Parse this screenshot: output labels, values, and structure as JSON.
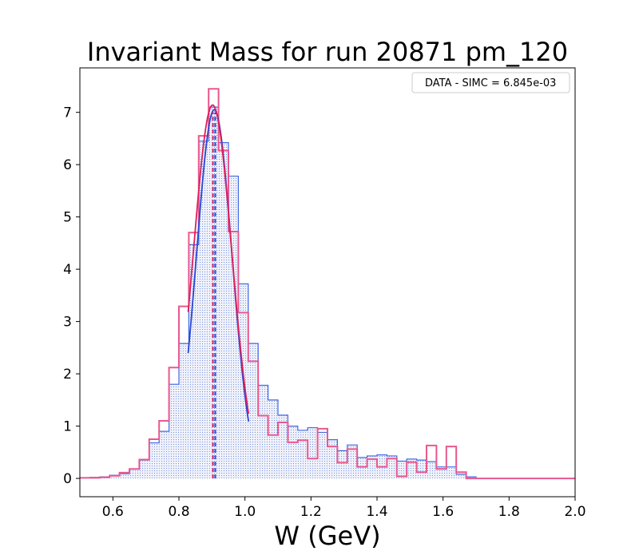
{
  "chart_data": {
    "type": "histogram",
    "title": "Invariant Mass for run 20871 pm_120",
    "xlabel": "W (GeV)",
    "ylabel": "",
    "xlim": [
      0.5,
      2.0
    ],
    "ylim": [
      -0.35,
      7.85
    ],
    "xticks": [
      "0.6",
      "0.8",
      "1.0",
      "1.2",
      "1.4",
      "1.6",
      "1.8",
      "2.0"
    ],
    "xtick_values": [
      0.6,
      0.8,
      1.0,
      1.2,
      1.4,
      1.6,
      1.8,
      2.0
    ],
    "yticks": [
      "0",
      "1",
      "2",
      "3",
      "4",
      "5",
      "6",
      "7"
    ],
    "ytick_values": [
      0,
      1,
      2,
      3,
      4,
      5,
      6,
      7
    ],
    "grid": false,
    "legend": {
      "text": "DATA - SIMC = 6.845e-03",
      "placement": "top-right"
    },
    "bin_edges": [
      0.5,
      0.53,
      0.56,
      0.59,
      0.62,
      0.65,
      0.68,
      0.71,
      0.74,
      0.77,
      0.8,
      0.83,
      0.86,
      0.89,
      0.92,
      0.95,
      0.98,
      1.01,
      1.04,
      1.07,
      1.1,
      1.13,
      1.16,
      1.19,
      1.22,
      1.25,
      1.28,
      1.31,
      1.34,
      1.37,
      1.4,
      1.43,
      1.46,
      1.49,
      1.52,
      1.55,
      1.58,
      1.61,
      1.64,
      1.67,
      1.7,
      2.0
    ],
    "series": [
      {
        "role": "simc",
        "style": "filled-step",
        "color": "#4169e1",
        "values": [
          0.01,
          0.02,
          0.03,
          0.06,
          0.09,
          0.18,
          0.35,
          0.68,
          0.9,
          1.8,
          2.58,
          4.47,
          6.45,
          7.1,
          6.42,
          5.78,
          3.72,
          2.58,
          1.78,
          1.5,
          1.21,
          1.0,
          0.92,
          0.97,
          0.88,
          0.74,
          0.53,
          0.64,
          0.4,
          0.43,
          0.45,
          0.43,
          0.33,
          0.37,
          0.35,
          0.32,
          0.22,
          0.22,
          0.08,
          0.03,
          0.0
        ]
      },
      {
        "role": "data",
        "style": "step",
        "color": "#e8588e",
        "values": [
          0.01,
          0.01,
          0.02,
          0.05,
          0.11,
          0.18,
          0.36,
          0.75,
          1.1,
          2.12,
          3.29,
          4.7,
          6.55,
          7.45,
          6.27,
          4.72,
          3.17,
          2.24,
          1.2,
          0.83,
          1.07,
          0.69,
          0.73,
          0.38,
          0.95,
          0.61,
          0.3,
          0.56,
          0.22,
          0.37,
          0.22,
          0.38,
          0.04,
          0.31,
          0.12,
          0.63,
          0.18,
          0.61,
          0.12,
          0.0,
          0.0
        ]
      }
    ],
    "fits": [
      {
        "role": "simc-fit",
        "color": "#2846d4",
        "amplitude": 7.05,
        "mean": 0.907,
        "sigma": 0.0538,
        "x_range": [
          0.828,
          1.011
        ]
      },
      {
        "role": "data-fit",
        "color": "#e01e5a",
        "amplitude": 7.14,
        "mean": 0.902,
        "sigma": 0.0582,
        "x_range": [
          0.828,
          1.011
        ]
      }
    ],
    "mean_lines": [
      {
        "role": "data-mean",
        "color": "#e01e5a",
        "x": 0.903
      },
      {
        "role": "simc-mean",
        "color": "#2846d4",
        "x": 0.91
      }
    ]
  }
}
